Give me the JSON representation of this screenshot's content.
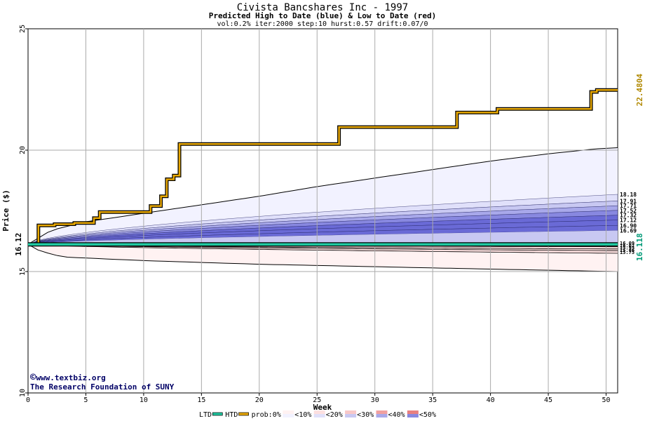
{
  "chart_data": {
    "type": "line",
    "title": "Civista Bancshares Inc - 1997",
    "subtitle": "Predicted High to Date (blue) &  Low to Date (red)",
    "params": "vol:0.2% iter:2000 step:10 hurst:0.57 drift:0.07/0",
    "xlabel": "Week",
    "ylabel": "Price ($)",
    "xlim": [
      0,
      51
    ],
    "ylim": [
      10,
      25
    ],
    "x_ticks": [
      0,
      5,
      10,
      15,
      20,
      25,
      30,
      35,
      40,
      45,
      50
    ],
    "y_ticks": [
      10,
      15,
      20,
      25
    ],
    "start_price": 16.12,
    "start_price_label": "16.12",
    "htd_final_label": "22.4804",
    "ltd_final_label": "16.118",
    "colors": {
      "htd": "#e8a800",
      "ltd": "#20c8a0",
      "htd_label": "#b08800",
      "ltd_label": "#009977",
      "band_blue": [
        "#f2f2ff",
        "#e0e0fa",
        "#c8c8f2",
        "#a8a8ea",
        "#8888e0",
        "#6a6ad6"
      ],
      "band_red": [
        "#fff2f2",
        "#fde0e0"
      ],
      "grid": "#aaaaaa"
    },
    "series": [
      {
        "name": "HTD",
        "step": true,
        "points": [
          [
            0,
            16.12
          ],
          [
            0.9,
            16.12
          ],
          [
            0.9,
            16.9
          ],
          [
            2.3,
            16.9
          ],
          [
            2.3,
            16.95
          ],
          [
            4,
            16.95
          ],
          [
            4,
            17.0
          ],
          [
            5.7,
            17.0
          ],
          [
            5.7,
            17.2
          ],
          [
            6.2,
            17.2
          ],
          [
            6.2,
            17.45
          ],
          [
            10.6,
            17.45
          ],
          [
            10.6,
            17.7
          ],
          [
            11.5,
            17.7
          ],
          [
            11.5,
            18.1
          ],
          [
            12,
            18.1
          ],
          [
            12,
            18.8
          ],
          [
            12.6,
            18.8
          ],
          [
            12.6,
            18.95
          ],
          [
            13.1,
            18.95
          ],
          [
            13.1,
            20.25
          ],
          [
            26.9,
            20.25
          ],
          [
            26.9,
            20.95
          ],
          [
            37.1,
            20.95
          ],
          [
            37.1,
            21.55
          ],
          [
            40.6,
            21.55
          ],
          [
            40.6,
            21.7
          ],
          [
            48.7,
            21.7
          ],
          [
            48.7,
            22.4
          ],
          [
            49.2,
            22.4
          ],
          [
            49.2,
            22.48
          ],
          [
            51,
            22.48
          ]
        ]
      },
      {
        "name": "LTD",
        "step": false,
        "points": [
          [
            0,
            16.12
          ],
          [
            51,
            16.118
          ]
        ]
      }
    ],
    "upper_envelope": [
      [
        0,
        16.12
      ],
      [
        2,
        16.7
      ],
      [
        5,
        17.05
      ],
      [
        10,
        17.4
      ],
      [
        15,
        17.75
      ],
      [
        20,
        18.1
      ],
      [
        25,
        18.5
      ],
      [
        30,
        18.85
      ],
      [
        35,
        19.2
      ],
      [
        40,
        19.55
      ],
      [
        45,
        19.85
      ],
      [
        49,
        20.05
      ],
      [
        51,
        20.1
      ]
    ],
    "lower_envelope": [
      [
        0,
        16.12
      ],
      [
        1,
        15.85
      ],
      [
        3,
        15.6
      ],
      [
        10,
        15.45
      ],
      [
        20,
        15.3
      ],
      [
        30,
        15.2
      ],
      [
        40,
        15.1
      ],
      [
        51,
        15.0
      ]
    ],
    "blue_band_final": [
      18.18,
      17.91,
      17.71,
      17.52,
      17.32,
      17.12,
      16.9,
      16.69
    ],
    "blue_band_labels": [
      "18.18",
      "17.91",
      "17.71",
      "17.52",
      "17.32",
      "17.12",
      "16.90",
      "16.69"
    ],
    "red_band_final": [
      16.09,
      16.02,
      15.93,
      15.86,
      15.75
    ],
    "red_band_labels": [
      "16.09",
      "16.02",
      "15.93",
      "15.86",
      "15.75"
    ],
    "legend": {
      "placement": "bottom",
      "items": [
        {
          "label": "LTD",
          "kind": "line",
          "color": "#20c8a0"
        },
        {
          "label": "HTD",
          "kind": "line",
          "color": "#e8a800"
        },
        {
          "label": "prob:0%",
          "kind": "text"
        },
        {
          "label": "<10%",
          "kind": "swatch",
          "colors": [
            "#f2f2ff",
            "#fff2f2"
          ]
        },
        {
          "label": "<20%",
          "kind": "swatch",
          "colors": [
            "#e0e0fa",
            "#fde0e0"
          ]
        },
        {
          "label": "<30%",
          "kind": "swatch",
          "colors": [
            "#c8c8f2",
            "#f8c8c8"
          ]
        },
        {
          "label": "<40%",
          "kind": "swatch",
          "colors": [
            "#a8a8ea",
            "#f0a0a0"
          ]
        },
        {
          "label": "<50%",
          "kind": "swatch",
          "colors": [
            "#8888e0",
            "#e88080"
          ]
        }
      ]
    },
    "grid": true
  },
  "watermark": {
    "line1": "www.textbiz.org",
    "line2": "The Research Foundation of SUNY"
  }
}
